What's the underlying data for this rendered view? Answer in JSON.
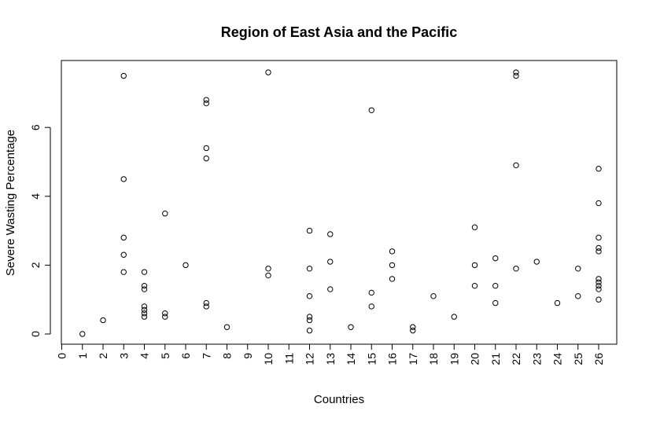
{
  "chart_data": {
    "type": "scatter",
    "title": "Region of East Asia and the Pacific",
    "xlabel": "Countries",
    "ylabel": "Severe Wasting Percentage",
    "xlim": [
      0,
      26
    ],
    "ylim": [
      0,
      7.6
    ],
    "x_ticks": [
      0,
      1,
      2,
      3,
      4,
      5,
      6,
      7,
      8,
      9,
      10,
      11,
      12,
      13,
      14,
      15,
      16,
      17,
      18,
      19,
      20,
      21,
      22,
      23,
      24,
      25,
      26
    ],
    "y_ticks": [
      0,
      2,
      4,
      6
    ],
    "grid": false,
    "legend": "none",
    "points": [
      {
        "x": 1,
        "y": 0
      },
      {
        "x": 2,
        "y": 0.4
      },
      {
        "x": 3,
        "y": 7.5
      },
      {
        "x": 3,
        "y": 4.5
      },
      {
        "x": 3,
        "y": 2.8
      },
      {
        "x": 3,
        "y": 2.3
      },
      {
        "x": 3,
        "y": 1.8
      },
      {
        "x": 4,
        "y": 1.8
      },
      {
        "x": 4,
        "y": 1.4
      },
      {
        "x": 4,
        "y": 1.3
      },
      {
        "x": 4,
        "y": 0.8
      },
      {
        "x": 4,
        "y": 0.7
      },
      {
        "x": 4,
        "y": 0.6
      },
      {
        "x": 4,
        "y": 0.5
      },
      {
        "x": 5,
        "y": 3.5
      },
      {
        "x": 5,
        "y": 0.6
      },
      {
        "x": 5,
        "y": 0.5
      },
      {
        "x": 6,
        "y": 2.0
      },
      {
        "x": 7,
        "y": 6.8
      },
      {
        "x": 7,
        "y": 6.7
      },
      {
        "x": 7,
        "y": 5.4
      },
      {
        "x": 7,
        "y": 5.1
      },
      {
        "x": 7,
        "y": 0.9
      },
      {
        "x": 7,
        "y": 0.8
      },
      {
        "x": 8,
        "y": 0.2
      },
      {
        "x": 10,
        "y": 7.6
      },
      {
        "x": 10,
        "y": 1.9
      },
      {
        "x": 10,
        "y": 1.7
      },
      {
        "x": 12,
        "y": 3.0
      },
      {
        "x": 12,
        "y": 1.9
      },
      {
        "x": 12,
        "y": 1.1
      },
      {
        "x": 12,
        "y": 0.5
      },
      {
        "x": 12,
        "y": 0.4
      },
      {
        "x": 12,
        "y": 0.1
      },
      {
        "x": 13,
        "y": 2.9
      },
      {
        "x": 13,
        "y": 2.1
      },
      {
        "x": 13,
        "y": 1.3
      },
      {
        "x": 14,
        "y": 0.2
      },
      {
        "x": 15,
        "y": 6.5
      },
      {
        "x": 15,
        "y": 1.2
      },
      {
        "x": 15,
        "y": 0.8
      },
      {
        "x": 16,
        "y": 2.4
      },
      {
        "x": 16,
        "y": 2.0
      },
      {
        "x": 16,
        "y": 1.6
      },
      {
        "x": 17,
        "y": 0.2
      },
      {
        "x": 17,
        "y": 0.1
      },
      {
        "x": 18,
        "y": 1.1
      },
      {
        "x": 19,
        "y": 0.5
      },
      {
        "x": 20,
        "y": 3.1
      },
      {
        "x": 20,
        "y": 2.0
      },
      {
        "x": 20,
        "y": 1.4
      },
      {
        "x": 21,
        "y": 2.2
      },
      {
        "x": 21,
        "y": 1.4
      },
      {
        "x": 21,
        "y": 0.9
      },
      {
        "x": 22,
        "y": 7.6
      },
      {
        "x": 22,
        "y": 7.5
      },
      {
        "x": 22,
        "y": 4.9
      },
      {
        "x": 22,
        "y": 1.9
      },
      {
        "x": 23,
        "y": 2.1
      },
      {
        "x": 24,
        "y": 0.9
      },
      {
        "x": 25,
        "y": 1.9
      },
      {
        "x": 25,
        "y": 1.1
      },
      {
        "x": 26,
        "y": 4.8
      },
      {
        "x": 26,
        "y": 3.8
      },
      {
        "x": 26,
        "y": 2.8
      },
      {
        "x": 26,
        "y": 2.5
      },
      {
        "x": 26,
        "y": 2.4
      },
      {
        "x": 26,
        "y": 1.6
      },
      {
        "x": 26,
        "y": 1.5
      },
      {
        "x": 26,
        "y": 1.4
      },
      {
        "x": 26,
        "y": 1.3
      },
      {
        "x": 26,
        "y": 1.0
      }
    ]
  }
}
